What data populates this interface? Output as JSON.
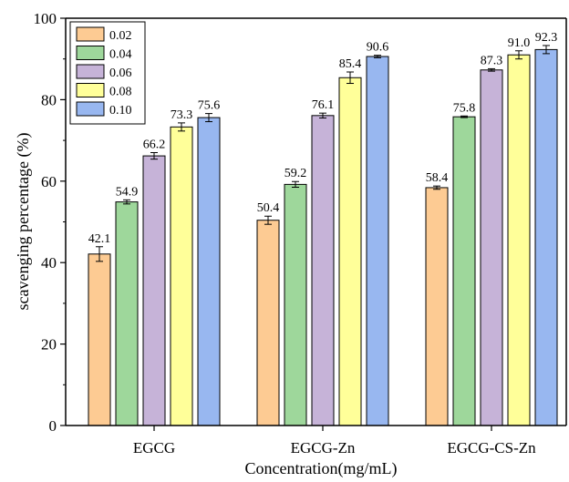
{
  "chart_data": {
    "type": "bar",
    "xlabel": "Concentration(mg/mL)",
    "ylabel": "scavenging percentage (%)",
    "ylim": [
      0,
      100
    ],
    "yticks": [
      0,
      20,
      40,
      60,
      80,
      100
    ],
    "categories": [
      "EGCG",
      "EGCG-Zn",
      "EGCG-CS-Zn"
    ],
    "series": [
      {
        "name": "0.02",
        "color": "#fdcb93",
        "values": [
          42.1,
          50.4,
          58.4
        ],
        "errors": [
          1.8,
          1.0,
          0.4
        ]
      },
      {
        "name": "0.04",
        "color": "#9ed79b",
        "values": [
          54.9,
          59.2,
          75.8
        ],
        "errors": [
          0.5,
          0.7,
          0.2
        ]
      },
      {
        "name": "0.06",
        "color": "#c6b3d8",
        "values": [
          66.2,
          76.1,
          87.3
        ],
        "errors": [
          0.8,
          0.6,
          0.3
        ]
      },
      {
        "name": "0.08",
        "color": "#ffff99",
        "values": [
          73.3,
          85.4,
          91.0
        ],
        "errors": [
          1.0,
          1.4,
          1.0
        ]
      },
      {
        "name": "0.10",
        "color": "#98b7f0",
        "values": [
          75.6,
          90.6,
          92.3
        ],
        "errors": [
          1.0,
          0.3,
          1.0
        ]
      }
    ],
    "value_labels": [
      [
        "42.1",
        "50.4",
        "58.4"
      ],
      [
        "54.9",
        "59.2",
        "75.8"
      ],
      [
        "66.2",
        "76.1",
        "87.3"
      ],
      [
        "73.3",
        "85.4",
        "91.0"
      ],
      [
        "75.6",
        "90.6",
        "92.3"
      ]
    ],
    "legend_position": "top-left",
    "grid": false
  }
}
